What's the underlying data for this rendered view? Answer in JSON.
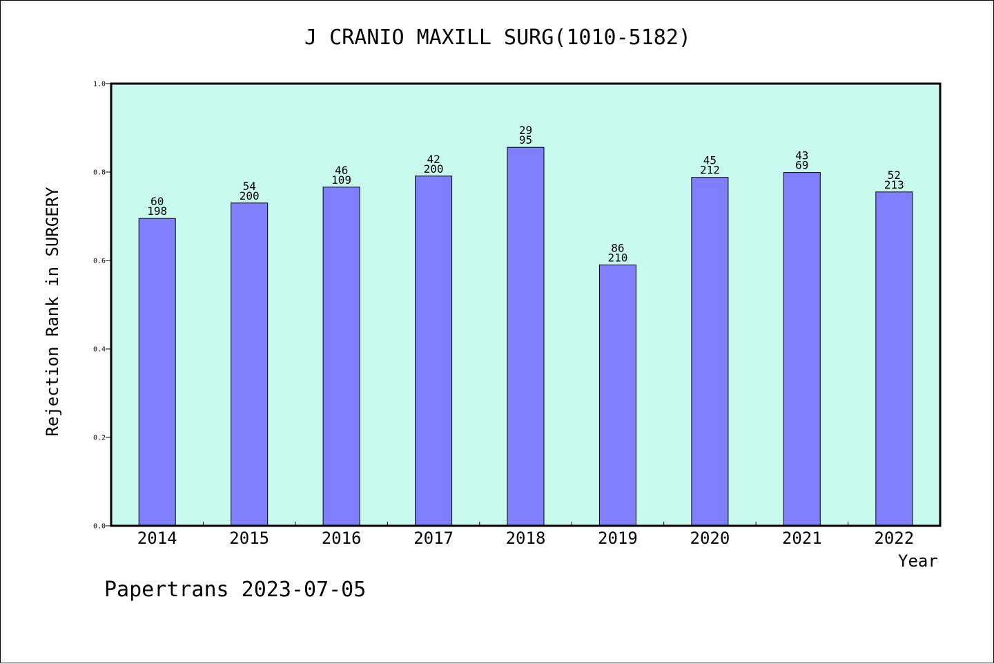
{
  "chart_data": {
    "type": "bar",
    "title": "J CRANIO MAXILL SURG(1010-5182)",
    "xlabel": "Year",
    "ylabel": "Rejection Rank in SURGERY",
    "categories": [
      "2014",
      "2015",
      "2016",
      "2017",
      "2018",
      "2019",
      "2020",
      "2021",
      "2022"
    ],
    "values": [
      0.695,
      0.73,
      0.766,
      0.791,
      0.856,
      0.59,
      0.788,
      0.799,
      0.755
    ],
    "label_top": [
      "60",
      "54",
      "46",
      "42",
      "29",
      "86",
      "45",
      "43",
      "52"
    ],
    "label_bottom": [
      "198",
      "200",
      "109",
      "200",
      "95",
      "210",
      "212",
      "69",
      "213"
    ],
    "ylim": [
      0,
      1.0
    ],
    "yticks": [
      "0.0",
      "0.2",
      "0.4",
      "0.6",
      "0.8",
      "1.0"
    ],
    "grid": false,
    "colors": {
      "plot_bg": "#c8fbee",
      "bar": "#8080ff"
    }
  },
  "footer": "Papertrans 2023-07-05"
}
